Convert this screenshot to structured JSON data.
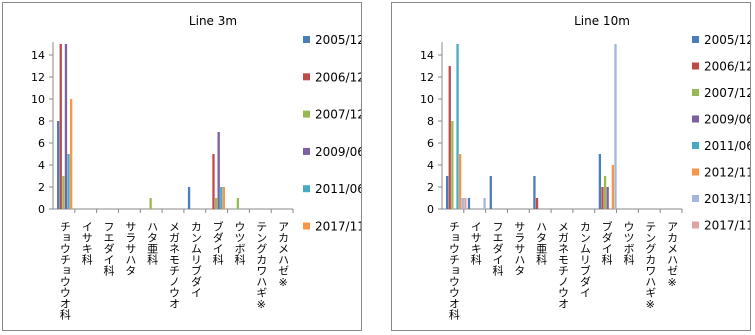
{
  "chart_data": [
    {
      "type": "bar",
      "title": "Line 3m",
      "categories": [
        "チョウチョウウオ科",
        "イサキ科",
        "フエダイ科",
        "サラサハタ",
        "ハタ亜科",
        "メガネモチノウオ",
        "カンムリブダイ",
        "ブダイ科",
        "ウツボ科",
        "テングカワハギ※",
        "アカメハゼ※"
      ],
      "ylim": [
        0,
        15
      ],
      "yticks": [
        0,
        2,
        4,
        6,
        8,
        10,
        12,
        14
      ],
      "grid": false,
      "legend_position": "right",
      "series": [
        {
          "name": "2005/12",
          "color": "#4a7ebb",
          "values": [
            8,
            0,
            0,
            0,
            0,
            0,
            2,
            0,
            0,
            0,
            0
          ]
        },
        {
          "name": "2006/12",
          "color": "#be4b48",
          "values": [
            15,
            0,
            0,
            0,
            0,
            0,
            0,
            5,
            0,
            0,
            0
          ]
        },
        {
          "name": "2007/12",
          "color": "#98b954",
          "values": [
            3,
            0,
            0,
            0,
            1,
            0,
            0,
            1,
            1,
            0,
            0
          ]
        },
        {
          "name": "2009/06",
          "color": "#7d60a0",
          "values": [
            15,
            0,
            0,
            0,
            0,
            0,
            0,
            7,
            0,
            0,
            0
          ]
        },
        {
          "name": "2011/06",
          "color": "#46aac5",
          "values": [
            5,
            0,
            0,
            0,
            0,
            0,
            0,
            2,
            0,
            0,
            0
          ]
        },
        {
          "name": "2017/11",
          "color": "#f79646",
          "values": [
            10,
            0,
            0,
            0,
            0,
            0,
            0,
            2,
            0,
            0,
            0
          ]
        }
      ]
    },
    {
      "type": "bar",
      "title": "Line 10m",
      "categories": [
        "チョウチョウウオ科",
        "イサキ科",
        "フエダイ科",
        "サラサハタ",
        "ハタ亜科",
        "メガネモチノウオ",
        "カンムリブダイ",
        "ブダイ科",
        "ウツボ科",
        "テングカワハギ※",
        "アカメハゼ※"
      ],
      "ylim": [
        0,
        15
      ],
      "yticks": [
        0,
        2,
        4,
        6,
        8,
        10,
        12,
        14
      ],
      "grid": false,
      "legend_position": "right",
      "series": [
        {
          "name": "2005/12",
          "color": "#4a7ebb",
          "values": [
            3,
            1,
            3,
            0,
            3,
            0,
            0,
            5,
            0,
            0,
            0
          ]
        },
        {
          "name": "2006/12",
          "color": "#be4b48",
          "values": [
            13,
            0,
            0,
            0,
            1,
            0,
            0,
            2,
            0,
            0,
            0
          ]
        },
        {
          "name": "2007/12",
          "color": "#98b954",
          "values": [
            8,
            0,
            0,
            0,
            0,
            0,
            0,
            3,
            0,
            0,
            0
          ]
        },
        {
          "name": "2009/06",
          "color": "#7d60a0",
          "values": [
            0,
            0,
            0,
            0,
            0,
            0,
            0,
            2,
            0,
            0,
            0
          ]
        },
        {
          "name": "2011/06",
          "color": "#46aac5",
          "values": [
            15,
            0,
            0,
            0,
            0,
            0,
            0,
            0,
            0,
            0,
            0
          ]
        },
        {
          "name": "2012/11",
          "color": "#f79646",
          "values": [
            5,
            0,
            0,
            0,
            0,
            0,
            0,
            4,
            0,
            0,
            0
          ]
        },
        {
          "name": "2013/11",
          "color": "#a5b6dc",
          "values": [
            1,
            1,
            0,
            0,
            0,
            0,
            0,
            15,
            0,
            0,
            0
          ]
        },
        {
          "name": "2017/11",
          "color": "#dea4a3",
          "values": [
            1,
            0,
            0,
            0,
            0,
            0,
            0,
            0,
            0,
            0,
            0
          ]
        }
      ]
    }
  ]
}
